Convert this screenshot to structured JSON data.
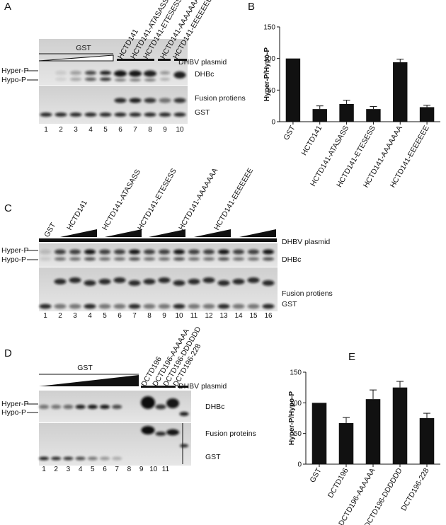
{
  "blots": [
    {
      "panel": "A",
      "top_labels": [
        "GST",
        "HCTD141",
        "HCTD141-ATASASS",
        "HCTD141-ETESESS",
        "HCTD141-AAAAAAA",
        "HCTD141-EEEEEEE"
      ],
      "condition": "DHBV plasmid",
      "band_labels": [
        "Hyper-P",
        "Hypo-P"
      ],
      "blot_labels": [
        "DHBc",
        "Fusion protiens",
        "GST"
      ],
      "lanes": [
        1,
        2,
        3,
        4,
        5,
        6,
        7,
        8,
        9,
        10
      ]
    },
    {
      "panel": "C",
      "top_labels": [
        "GST",
        "HCTD141",
        "HCTD141-ATASASS",
        "HCTD141-ETESESS",
        "HCTD141-AAAAAAA",
        "HCTD141-EEEEEEE"
      ],
      "condition": "DHBV plasmid",
      "band_labels": [
        "Hyper-P",
        "Hypo-P"
      ],
      "blot_labels": [
        "DHBc",
        "Fusion protiens",
        "GST"
      ],
      "lanes": [
        1,
        2,
        3,
        4,
        5,
        6,
        7,
        8,
        9,
        10,
        11,
        12,
        13,
        14,
        15,
        16
      ]
    },
    {
      "panel": "D",
      "top_labels": [
        "GST",
        "DCTD196",
        "DCTD196-AAAAAA",
        "DCTD196-DDDDDD",
        "DCTD196-228"
      ],
      "condition": "DHBV plasmid",
      "band_labels": [
        "Hyper-P",
        "Hypo-P"
      ],
      "blot_labels": [
        "DHBc",
        "Fusion proteins",
        "GST"
      ],
      "lanes": [
        1,
        2,
        3,
        4,
        5,
        6,
        7,
        8,
        9,
        10,
        11
      ]
    }
  ],
  "chart_data": [
    {
      "type": "bar",
      "panel": "B",
      "ylabel": "Hyper-P/Hypo-P",
      "categories": [
        "GST",
        "HCTD141",
        "HCTD141-ATASASS",
        "HCTD141-ETESESS",
        "HCTD141-AAAAAAA",
        "HCTD141-EEEEEEE"
      ],
      "values": [
        100,
        20,
        28,
        20,
        94,
        23
      ],
      "errors": [
        0,
        5,
        6,
        4,
        5,
        3
      ],
      "color": "#111111",
      "ylim": [
        0,
        150
      ],
      "yticks": [
        0,
        50,
        100,
        150
      ]
    },
    {
      "type": "bar",
      "panel": "E",
      "ylabel": "Hyper-P/Hypo-P",
      "categories": [
        "GST",
        "DCTD196",
        "DCTD196-AAAAAA",
        "DCTD196-DDDDDD",
        "DCTD196-228"
      ],
      "values": [
        100,
        67,
        106,
        125,
        75
      ],
      "errors": [
        0,
        9,
        15,
        10,
        8
      ],
      "color": "#111111",
      "ylim": [
        0,
        150
      ],
      "yticks": [
        0,
        50,
        100,
        150
      ]
    }
  ]
}
